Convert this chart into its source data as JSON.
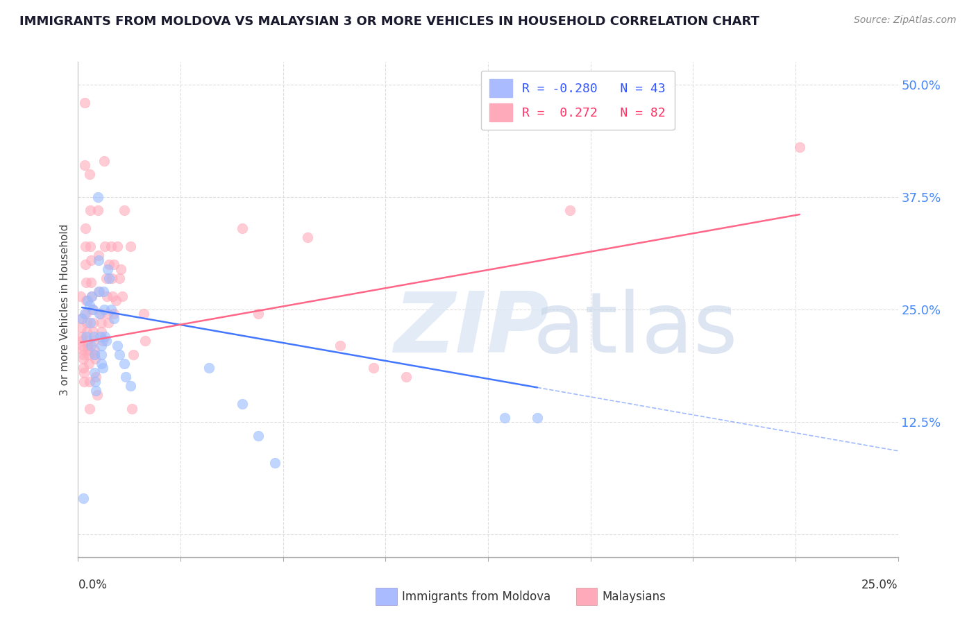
{
  "title": "IMMIGRANTS FROM MOLDOVA VS MALAYSIAN 3 OR MORE VEHICLES IN HOUSEHOLD CORRELATION CHART",
  "source": "Source: ZipAtlas.com",
  "ylabel": "3 or more Vehicles in Household",
  "xmin": 0.0,
  "xmax": 0.25,
  "ymin": -0.025,
  "ymax": 0.525,
  "ytick_vals": [
    0.0,
    0.125,
    0.25,
    0.375,
    0.5
  ],
  "ytick_labels": [
    "",
    "12.5%",
    "25.0%",
    "37.5%",
    "50.0%"
  ],
  "xtick_vals": [
    0.0,
    0.03125,
    0.0625,
    0.09375,
    0.125,
    0.15625,
    0.1875,
    0.21875,
    0.25
  ],
  "blue_r": -0.28,
  "blue_n": 43,
  "pink_r": 0.272,
  "pink_n": 82,
  "blue_color": "#99bbff",
  "pink_color": "#ffaabb",
  "blue_line": "#4477ff",
  "pink_line": "#ff6688",
  "grid_color": "#dddddd",
  "right_tick_color": "#4488ff",
  "bg": "#ffffff",
  "blue_trend_x0": 0.0,
  "blue_trend_y0": 0.253,
  "blue_trend_x1": 0.25,
  "blue_trend_y1": 0.093,
  "pink_trend_x0": 0.0,
  "pink_trend_y0": 0.213,
  "pink_trend_x1": 0.25,
  "pink_trend_y1": 0.375,
  "blue_points": [
    [
      0.0012,
      0.24
    ],
    [
      0.0015,
      0.04
    ],
    [
      0.002,
      0.245
    ],
    [
      0.0025,
      0.22
    ],
    [
      0.0028,
      0.26
    ],
    [
      0.0035,
      0.255
    ],
    [
      0.0038,
      0.235
    ],
    [
      0.004,
      0.21
    ],
    [
      0.0042,
      0.265
    ],
    [
      0.0045,
      0.25
    ],
    [
      0.0048,
      0.22
    ],
    [
      0.005,
      0.2
    ],
    [
      0.005,
      0.18
    ],
    [
      0.0052,
      0.17
    ],
    [
      0.0055,
      0.16
    ],
    [
      0.006,
      0.375
    ],
    [
      0.0062,
      0.305
    ],
    [
      0.0063,
      0.27
    ],
    [
      0.0065,
      0.245
    ],
    [
      0.0068,
      0.22
    ],
    [
      0.007,
      0.21
    ],
    [
      0.007,
      0.2
    ],
    [
      0.0072,
      0.19
    ],
    [
      0.0075,
      0.185
    ],
    [
      0.0078,
      0.27
    ],
    [
      0.008,
      0.25
    ],
    [
      0.0082,
      0.22
    ],
    [
      0.0085,
      0.215
    ],
    [
      0.009,
      0.295
    ],
    [
      0.0095,
      0.285
    ],
    [
      0.01,
      0.25
    ],
    [
      0.011,
      0.24
    ],
    [
      0.012,
      0.21
    ],
    [
      0.0125,
      0.2
    ],
    [
      0.014,
      0.19
    ],
    [
      0.0145,
      0.175
    ],
    [
      0.016,
      0.165
    ],
    [
      0.04,
      0.185
    ],
    [
      0.05,
      0.145
    ],
    [
      0.055,
      0.11
    ],
    [
      0.06,
      0.08
    ],
    [
      0.13,
      0.13
    ],
    [
      0.14,
      0.13
    ]
  ],
  "pink_points": [
    [
      0.0008,
      0.265
    ],
    [
      0.001,
      0.24
    ],
    [
      0.001,
      0.23
    ],
    [
      0.0012,
      0.22
    ],
    [
      0.0012,
      0.215
    ],
    [
      0.0014,
      0.21
    ],
    [
      0.0014,
      0.205
    ],
    [
      0.0015,
      0.2
    ],
    [
      0.0016,
      0.195
    ],
    [
      0.0016,
      0.185
    ],
    [
      0.0018,
      0.18
    ],
    [
      0.0018,
      0.17
    ],
    [
      0.002,
      0.48
    ],
    [
      0.002,
      0.41
    ],
    [
      0.0022,
      0.34
    ],
    [
      0.0022,
      0.32
    ],
    [
      0.0023,
      0.3
    ],
    [
      0.0024,
      0.28
    ],
    [
      0.0025,
      0.26
    ],
    [
      0.0025,
      0.245
    ],
    [
      0.0026,
      0.235
    ],
    [
      0.0026,
      0.225
    ],
    [
      0.0028,
      0.215
    ],
    [
      0.0028,
      0.21
    ],
    [
      0.003,
      0.205
    ],
    [
      0.003,
      0.2
    ],
    [
      0.0032,
      0.19
    ],
    [
      0.0034,
      0.17
    ],
    [
      0.0035,
      0.14
    ],
    [
      0.0036,
      0.4
    ],
    [
      0.0038,
      0.36
    ],
    [
      0.0038,
      0.32
    ],
    [
      0.004,
      0.305
    ],
    [
      0.004,
      0.28
    ],
    [
      0.0042,
      0.265
    ],
    [
      0.0044,
      0.25
    ],
    [
      0.0045,
      0.235
    ],
    [
      0.0046,
      0.225
    ],
    [
      0.0048,
      0.215
    ],
    [
      0.005,
      0.205
    ],
    [
      0.005,
      0.2
    ],
    [
      0.0052,
      0.195
    ],
    [
      0.0055,
      0.175
    ],
    [
      0.0058,
      0.155
    ],
    [
      0.006,
      0.36
    ],
    [
      0.0062,
      0.31
    ],
    [
      0.0065,
      0.27
    ],
    [
      0.0068,
      0.245
    ],
    [
      0.007,
      0.235
    ],
    [
      0.0072,
      0.225
    ],
    [
      0.0075,
      0.215
    ],
    [
      0.008,
      0.415
    ],
    [
      0.0082,
      0.32
    ],
    [
      0.0085,
      0.285
    ],
    [
      0.0088,
      0.265
    ],
    [
      0.009,
      0.245
    ],
    [
      0.0092,
      0.235
    ],
    [
      0.0095,
      0.3
    ],
    [
      0.01,
      0.32
    ],
    [
      0.0102,
      0.285
    ],
    [
      0.0105,
      0.265
    ],
    [
      0.0108,
      0.245
    ],
    [
      0.011,
      0.3
    ],
    [
      0.0115,
      0.26
    ],
    [
      0.012,
      0.32
    ],
    [
      0.0125,
      0.285
    ],
    [
      0.013,
      0.295
    ],
    [
      0.0135,
      0.265
    ],
    [
      0.014,
      0.36
    ],
    [
      0.016,
      0.32
    ],
    [
      0.0165,
      0.14
    ],
    [
      0.0168,
      0.2
    ],
    [
      0.02,
      0.245
    ],
    [
      0.0205,
      0.215
    ],
    [
      0.05,
      0.34
    ],
    [
      0.055,
      0.245
    ],
    [
      0.07,
      0.33
    ],
    [
      0.08,
      0.21
    ],
    [
      0.09,
      0.185
    ],
    [
      0.1,
      0.175
    ],
    [
      0.15,
      0.36
    ],
    [
      0.22,
      0.43
    ]
  ]
}
